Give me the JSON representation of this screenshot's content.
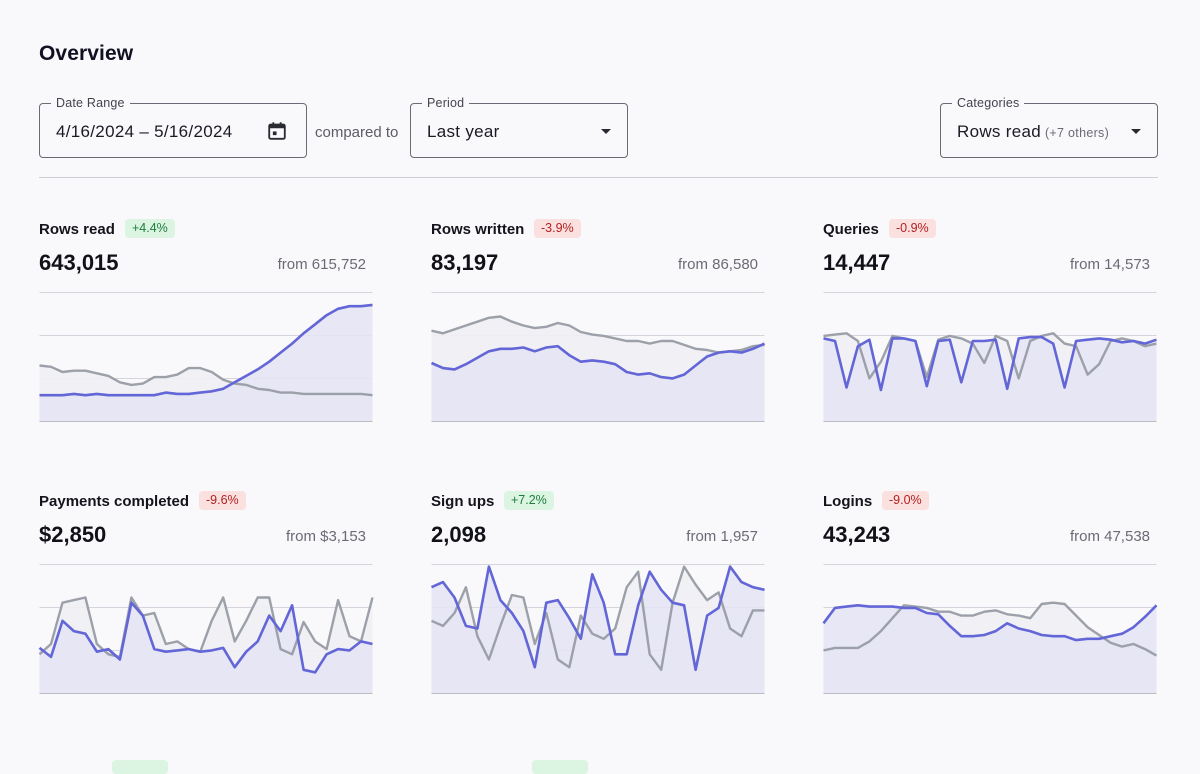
{
  "page": {
    "title": "Overview"
  },
  "filters": {
    "date_range": {
      "label": "Date Range",
      "value": "4/16/2024 – 5/16/2024",
      "icon": "calendar-icon"
    },
    "compared_to": "compared to",
    "period": {
      "label": "Period",
      "value": "Last year",
      "icon": "chevron-down-icon"
    },
    "categories": {
      "label": "Categories",
      "value": "Rows read",
      "extra": "(+7 others)",
      "icon": "chevron-down-icon"
    }
  },
  "colors": {
    "current": "#6366d6",
    "current_fill": "#e4e4f5",
    "previous": "#9ca0a8",
    "previous_fill": "#efeff4",
    "positive_badge_bg": "#dcf5e3",
    "negative_badge_bg": "#fbe0e0"
  },
  "metrics": [
    {
      "name": "Rows read",
      "change": "+4.4%",
      "trend": "up",
      "value": "643,015",
      "from": "from 615,752",
      "current": [
        0.2,
        0.2,
        0.2,
        0.21,
        0.2,
        0.21,
        0.2,
        0.2,
        0.2,
        0.2,
        0.2,
        0.22,
        0.21,
        0.21,
        0.22,
        0.23,
        0.25,
        0.3,
        0.35,
        0.4,
        0.46,
        0.53,
        0.6,
        0.68,
        0.75,
        0.82,
        0.87,
        0.89,
        0.89,
        0.9
      ],
      "previous": [
        0.43,
        0.42,
        0.38,
        0.39,
        0.39,
        0.37,
        0.35,
        0.3,
        0.28,
        0.29,
        0.34,
        0.34,
        0.36,
        0.41,
        0.41,
        0.38,
        0.32,
        0.29,
        0.28,
        0.25,
        0.24,
        0.22,
        0.22,
        0.21,
        0.21,
        0.21,
        0.21,
        0.21,
        0.21,
        0.2
      ]
    },
    {
      "name": "Rows written",
      "change": "-3.9%",
      "trend": "down",
      "value": "83,197",
      "from": "from 86,580",
      "current": [
        0.45,
        0.41,
        0.4,
        0.44,
        0.49,
        0.54,
        0.56,
        0.56,
        0.57,
        0.54,
        0.57,
        0.58,
        0.51,
        0.46,
        0.47,
        0.46,
        0.44,
        0.38,
        0.36,
        0.37,
        0.34,
        0.33,
        0.36,
        0.43,
        0.5,
        0.53,
        0.54,
        0.53,
        0.56,
        0.6
      ],
      "previous": [
        0.7,
        0.68,
        0.71,
        0.74,
        0.77,
        0.8,
        0.81,
        0.77,
        0.74,
        0.72,
        0.73,
        0.76,
        0.74,
        0.69,
        0.67,
        0.66,
        0.64,
        0.62,
        0.62,
        0.6,
        0.62,
        0.62,
        0.59,
        0.56,
        0.55,
        0.53,
        0.54,
        0.55,
        0.58,
        0.59
      ]
    },
    {
      "name": "Queries",
      "change": "-0.9%",
      "trend": "down",
      "value": "14,447",
      "from": "from 14,573",
      "current": [
        0.64,
        0.62,
        0.26,
        0.58,
        0.63,
        0.24,
        0.64,
        0.64,
        0.62,
        0.27,
        0.62,
        0.63,
        0.3,
        0.62,
        0.62,
        0.63,
        0.25,
        0.64,
        0.65,
        0.65,
        0.6,
        0.26,
        0.62,
        0.63,
        0.64,
        0.63,
        0.61,
        0.62,
        0.6,
        0.63
      ],
      "previous": [
        0.66,
        0.67,
        0.68,
        0.62,
        0.33,
        0.46,
        0.66,
        0.64,
        0.62,
        0.34,
        0.63,
        0.66,
        0.64,
        0.6,
        0.45,
        0.66,
        0.62,
        0.33,
        0.62,
        0.66,
        0.68,
        0.6,
        0.58,
        0.36,
        0.44,
        0.62,
        0.64,
        0.62,
        0.58,
        0.6
      ]
    },
    {
      "name": "Payments completed",
      "change": "-9.6%",
      "trend": "down",
      "value": "$2,850",
      "from": "from $3,153",
      "current": [
        0.35,
        0.28,
        0.56,
        0.48,
        0.46,
        0.32,
        0.34,
        0.26,
        0.7,
        0.6,
        0.34,
        0.32,
        0.33,
        0.34,
        0.32,
        0.33,
        0.35,
        0.2,
        0.32,
        0.4,
        0.6,
        0.48,
        0.68,
        0.18,
        0.16,
        0.3,
        0.34,
        0.33,
        0.4,
        0.38
      ],
      "previous": [
        0.3,
        0.38,
        0.7,
        0.72,
        0.74,
        0.38,
        0.3,
        0.28,
        0.74,
        0.6,
        0.62,
        0.38,
        0.4,
        0.34,
        0.32,
        0.56,
        0.74,
        0.4,
        0.56,
        0.74,
        0.74,
        0.34,
        0.3,
        0.55,
        0.4,
        0.34,
        0.72,
        0.44,
        0.4,
        0.74
      ]
    },
    {
      "name": "Sign ups",
      "change": "+7.2%",
      "trend": "up",
      "value": "2,098",
      "from": "from 1,957",
      "current": [
        0.82,
        0.86,
        0.74,
        0.52,
        0.5,
        0.98,
        0.72,
        0.62,
        0.48,
        0.2,
        0.7,
        0.72,
        0.58,
        0.42,
        0.92,
        0.7,
        0.3,
        0.3,
        0.68,
        0.94,
        0.8,
        0.7,
        0.68,
        0.18,
        0.6,
        0.66,
        0.98,
        0.86,
        0.82,
        0.8
      ],
      "previous": [
        0.56,
        0.52,
        0.62,
        0.82,
        0.44,
        0.26,
        0.52,
        0.76,
        0.74,
        0.38,
        0.62,
        0.26,
        0.2,
        0.6,
        0.46,
        0.42,
        0.5,
        0.82,
        0.94,
        0.3,
        0.18,
        0.7,
        0.98,
        0.84,
        0.72,
        0.78,
        0.5,
        0.44,
        0.64,
        0.64
      ]
    },
    {
      "name": "Logins",
      "change": "-9.0%",
      "trend": "down",
      "value": "43,243",
      "from": "from 47,538",
      "current": [
        0.54,
        0.66,
        0.67,
        0.68,
        0.67,
        0.67,
        0.67,
        0.66,
        0.66,
        0.62,
        0.61,
        0.52,
        0.44,
        0.44,
        0.45,
        0.48,
        0.54,
        0.5,
        0.48,
        0.45,
        0.44,
        0.44,
        0.41,
        0.42,
        0.42,
        0.44,
        0.46,
        0.51,
        0.59,
        0.68
      ],
      "previous": [
        0.33,
        0.35,
        0.35,
        0.35,
        0.4,
        0.48,
        0.58,
        0.68,
        0.67,
        0.66,
        0.63,
        0.63,
        0.6,
        0.6,
        0.63,
        0.64,
        0.61,
        0.6,
        0.58,
        0.69,
        0.7,
        0.69,
        0.6,
        0.51,
        0.45,
        0.39,
        0.36,
        0.38,
        0.34,
        0.29
      ]
    }
  ]
}
